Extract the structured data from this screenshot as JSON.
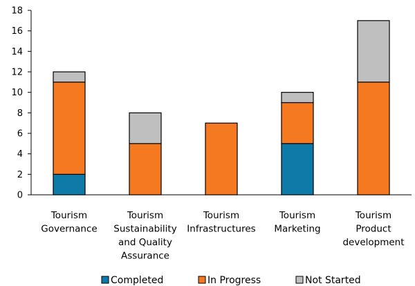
{
  "chart_data": {
    "type": "bar",
    "stacked": true,
    "categories": [
      [
        "Tourism",
        "Governance"
      ],
      [
        "Tourism",
        "Sustainability",
        "and Quality",
        "Assurance"
      ],
      [
        "Tourism",
        "Infrastructures"
      ],
      [
        "Tourism",
        "Marketing"
      ],
      [
        "Tourism",
        "Product",
        "development"
      ]
    ],
    "series": [
      {
        "name": "Completed",
        "color": "#0e7aa8",
        "values": [
          2,
          0,
          0,
          5,
          0
        ]
      },
      {
        "name": "In Progress",
        "color": "#f47920",
        "values": [
          9,
          5,
          7,
          4,
          11
        ]
      },
      {
        "name": "Not Started",
        "color": "#bfbfbf",
        "values": [
          1,
          3,
          0,
          1,
          6
        ]
      }
    ],
    "yticks": [
      "0",
      "2",
      "4",
      "6",
      "8",
      "10",
      "12",
      "14",
      "16",
      "18"
    ],
    "ylim": [
      0,
      18
    ],
    "grid": false,
    "legend_position": "bottom",
    "title": "",
    "xlabel": "",
    "ylabel": ""
  }
}
